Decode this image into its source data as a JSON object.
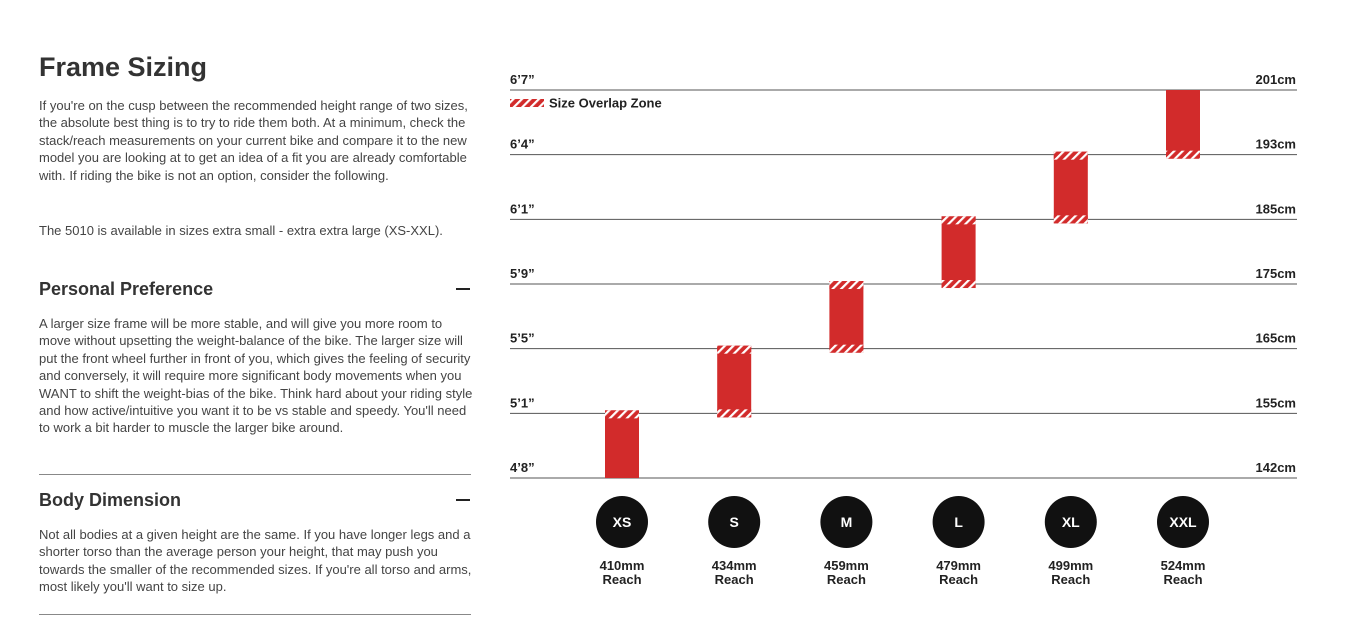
{
  "title": "Frame Sizing",
  "intro": [
    "If you're on the cusp between the recommended height range of two sizes, the absolute best thing is to try to ride them both. At a minimum, check the stack/reach measurements on your current bike and compare it to the new model you are looking at to get an idea of a fit you are already comfortable with. If riding the bike is not an option, consider the following.",
    "The 5010 is available in sizes extra small - extra extra large (XS-XXL)."
  ],
  "sections": [
    {
      "title": "Personal Preference",
      "body": "A larger size frame will be more stable, and will give you more room to move without upsetting the weight-balance of the bike. The larger size will put the front wheel further in front of you, which gives the feeling of security and conversely, it will require more significant body movements when you WANT to shift the weight-bias of the bike. Think hard about your riding style and how active/intuitive you want it to be vs stable and speedy. You'll need to work a bit harder to muscle the larger bike around."
    },
    {
      "title": "Body Dimension",
      "body": "Not all bodies at a given height are the same. If you have longer legs and a shorter torso than the average person your height, that may push you towards the smaller of the recommended sizes. If you're all torso and arms, most likely you'll want to size up."
    }
  ],
  "chart": {
    "legend": "Size Overlap Zone",
    "rows": [
      {
        "imperial": "6’7”",
        "metric": "201cm"
      },
      {
        "imperial": "6’4”",
        "metric": "193cm"
      },
      {
        "imperial": "6’1”",
        "metric": "185cm"
      },
      {
        "imperial": "5’9”",
        "metric": "175cm"
      },
      {
        "imperial": "5’5”",
        "metric": "165cm"
      },
      {
        "imperial": "5’1”",
        "metric": "155cm"
      },
      {
        "imperial": "4’8”",
        "metric": "142cm"
      }
    ],
    "sizes": [
      {
        "label": "XS",
        "reach": "410mm",
        "reach_label": "Reach"
      },
      {
        "label": "S",
        "reach": "434mm",
        "reach_label": "Reach"
      },
      {
        "label": "M",
        "reach": "459mm",
        "reach_label": "Reach"
      },
      {
        "label": "L",
        "reach": "479mm",
        "reach_label": "Reach"
      },
      {
        "label": "XL",
        "reach": "499mm",
        "reach_label": "Reach"
      },
      {
        "label": "XXL",
        "reach": "524mm",
        "reach_label": "Reach"
      }
    ]
  }
}
